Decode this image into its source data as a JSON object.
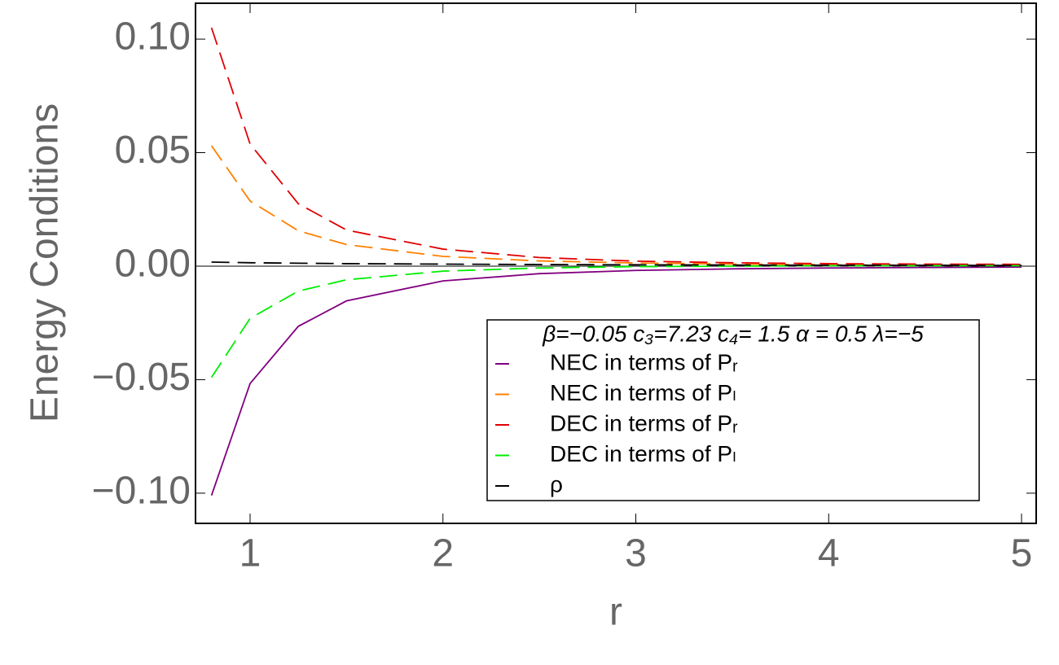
{
  "chart_data": {
    "type": "line",
    "x_label": "r",
    "y_label": "Energy Conditions",
    "legend_title": "β=−0.05 c₃=7.23 c₄= 1.5 α = 0.5 λ=−5",
    "x": [
      0.8,
      1,
      1.25,
      1.5,
      2,
      2.5,
      3,
      3.5,
      4,
      4.5,
      5
    ],
    "series": [
      {
        "name": "NEC in terms of Pᵣ",
        "color": "#800080",
        "style": "solid",
        "values": [
          -0.101,
          -0.0517,
          -0.0265,
          -0.0153,
          -0.0065,
          -0.0033,
          -0.0019,
          -0.0012,
          -0.0008,
          -0.0006,
          -0.0004
        ]
      },
      {
        "name": "NEC in terms of Pₗ",
        "color": "#ff8000",
        "style": "dashed",
        "values": [
          0.053,
          0.0287,
          0.0156,
          0.0095,
          0.0043,
          0.0023,
          0.0014,
          0.0009,
          0.0006,
          0.0004,
          0.0003
        ]
      },
      {
        "name": "DEC in terms of Pᵣ",
        "color": "#e00000",
        "style": "dashed",
        "values": [
          0.105,
          0.0538,
          0.0275,
          0.0159,
          0.0075,
          0.0038,
          0.0022,
          0.0015,
          0.0011,
          0.0009,
          0.0008
        ]
      },
      {
        "name": "DEC in terms of Pₗ",
        "color": "#00ee00",
        "style": "dashed",
        "values": [
          -0.049,
          -0.023,
          -0.011,
          -0.006,
          -0.0022,
          -0.0008,
          -0.0002,
          0,
          0.0002,
          0.0002,
          0.0002
        ]
      },
      {
        "name": "ρ",
        "color": "#000000",
        "style": "dashed",
        "values": [
          0.0018,
          0.0015,
          0.0013,
          0.0011,
          0.0009,
          0.0007,
          0.0006,
          0.0005,
          0.0004,
          0.0004,
          0.0003
        ]
      }
    ],
    "xlim": [
      0.717,
      5.076
    ],
    "xticks": [
      1,
      2,
      3,
      4,
      5
    ],
    "ylim": [
      -0.1133,
      0.1158
    ],
    "yticks": [
      {
        "value": -0.1,
        "label": "−0.10"
      },
      {
        "value": -0.05,
        "label": "−0.05"
      },
      {
        "value": 0,
        "label": "0.00"
      },
      {
        "value": 0.05,
        "label": "0.05"
      },
      {
        "value": 0.1,
        "label": "0.10"
      }
    ]
  }
}
